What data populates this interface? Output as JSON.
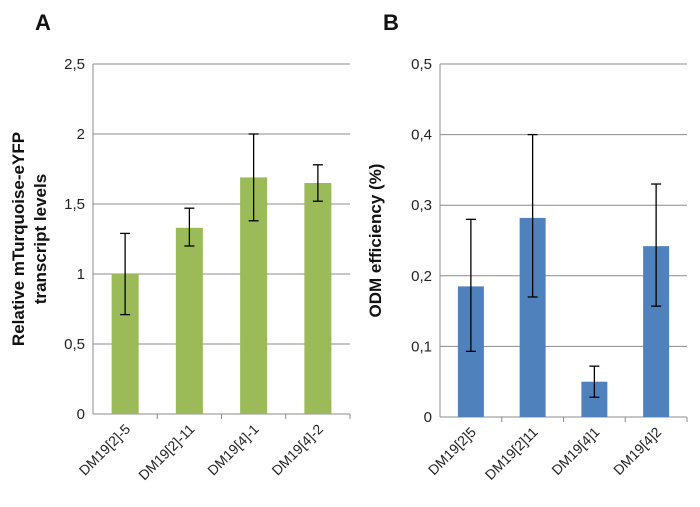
{
  "chart_data": [
    {
      "type": "bar",
      "panel_label": "A",
      "categories": [
        "DM19[2]-5",
        "DM19[2]-11",
        "DM19[4]-1",
        "DM19[4]-2"
      ],
      "values": [
        1.0,
        1.33,
        1.69,
        1.65
      ],
      "error_low": [
        0.71,
        1.2,
        1.38,
        1.52
      ],
      "error_high": [
        1.29,
        1.47,
        2.0,
        1.78
      ],
      "ylabel_lines": [
        "Relative mTurquoise-eYFP",
        "transcript levels"
      ],
      "ylim": [
        0,
        2.5
      ],
      "yticks": [
        0,
        0.5,
        1,
        1.5,
        2,
        2.5
      ],
      "ytick_labels": [
        "0",
        "0,5",
        "1",
        "1,5",
        "2",
        "2,5"
      ],
      "grid": true,
      "bar_color": "#9bbb59"
    },
    {
      "type": "bar",
      "panel_label": "B",
      "categories": [
        "DM19[2]5",
        "DM19[2]11",
        "DM19[4]1",
        "DM19[4]2"
      ],
      "values": [
        0.185,
        0.282,
        0.05,
        0.242
      ],
      "error_low": [
        0.093,
        0.17,
        0.028,
        0.157
      ],
      "error_high": [
        0.28,
        0.4,
        0.072,
        0.33
      ],
      "ylabel_lines": [
        "ODM efficiency (%)"
      ],
      "ylim": [
        0,
        0.5
      ],
      "yticks": [
        0,
        0.1,
        0.2,
        0.3,
        0.4,
        0.5
      ],
      "ytick_labels": [
        "0",
        "0,1",
        "0,2",
        "0,3",
        "0,4",
        "0,5"
      ],
      "grid": true,
      "bar_color": "#4f81bd"
    }
  ]
}
